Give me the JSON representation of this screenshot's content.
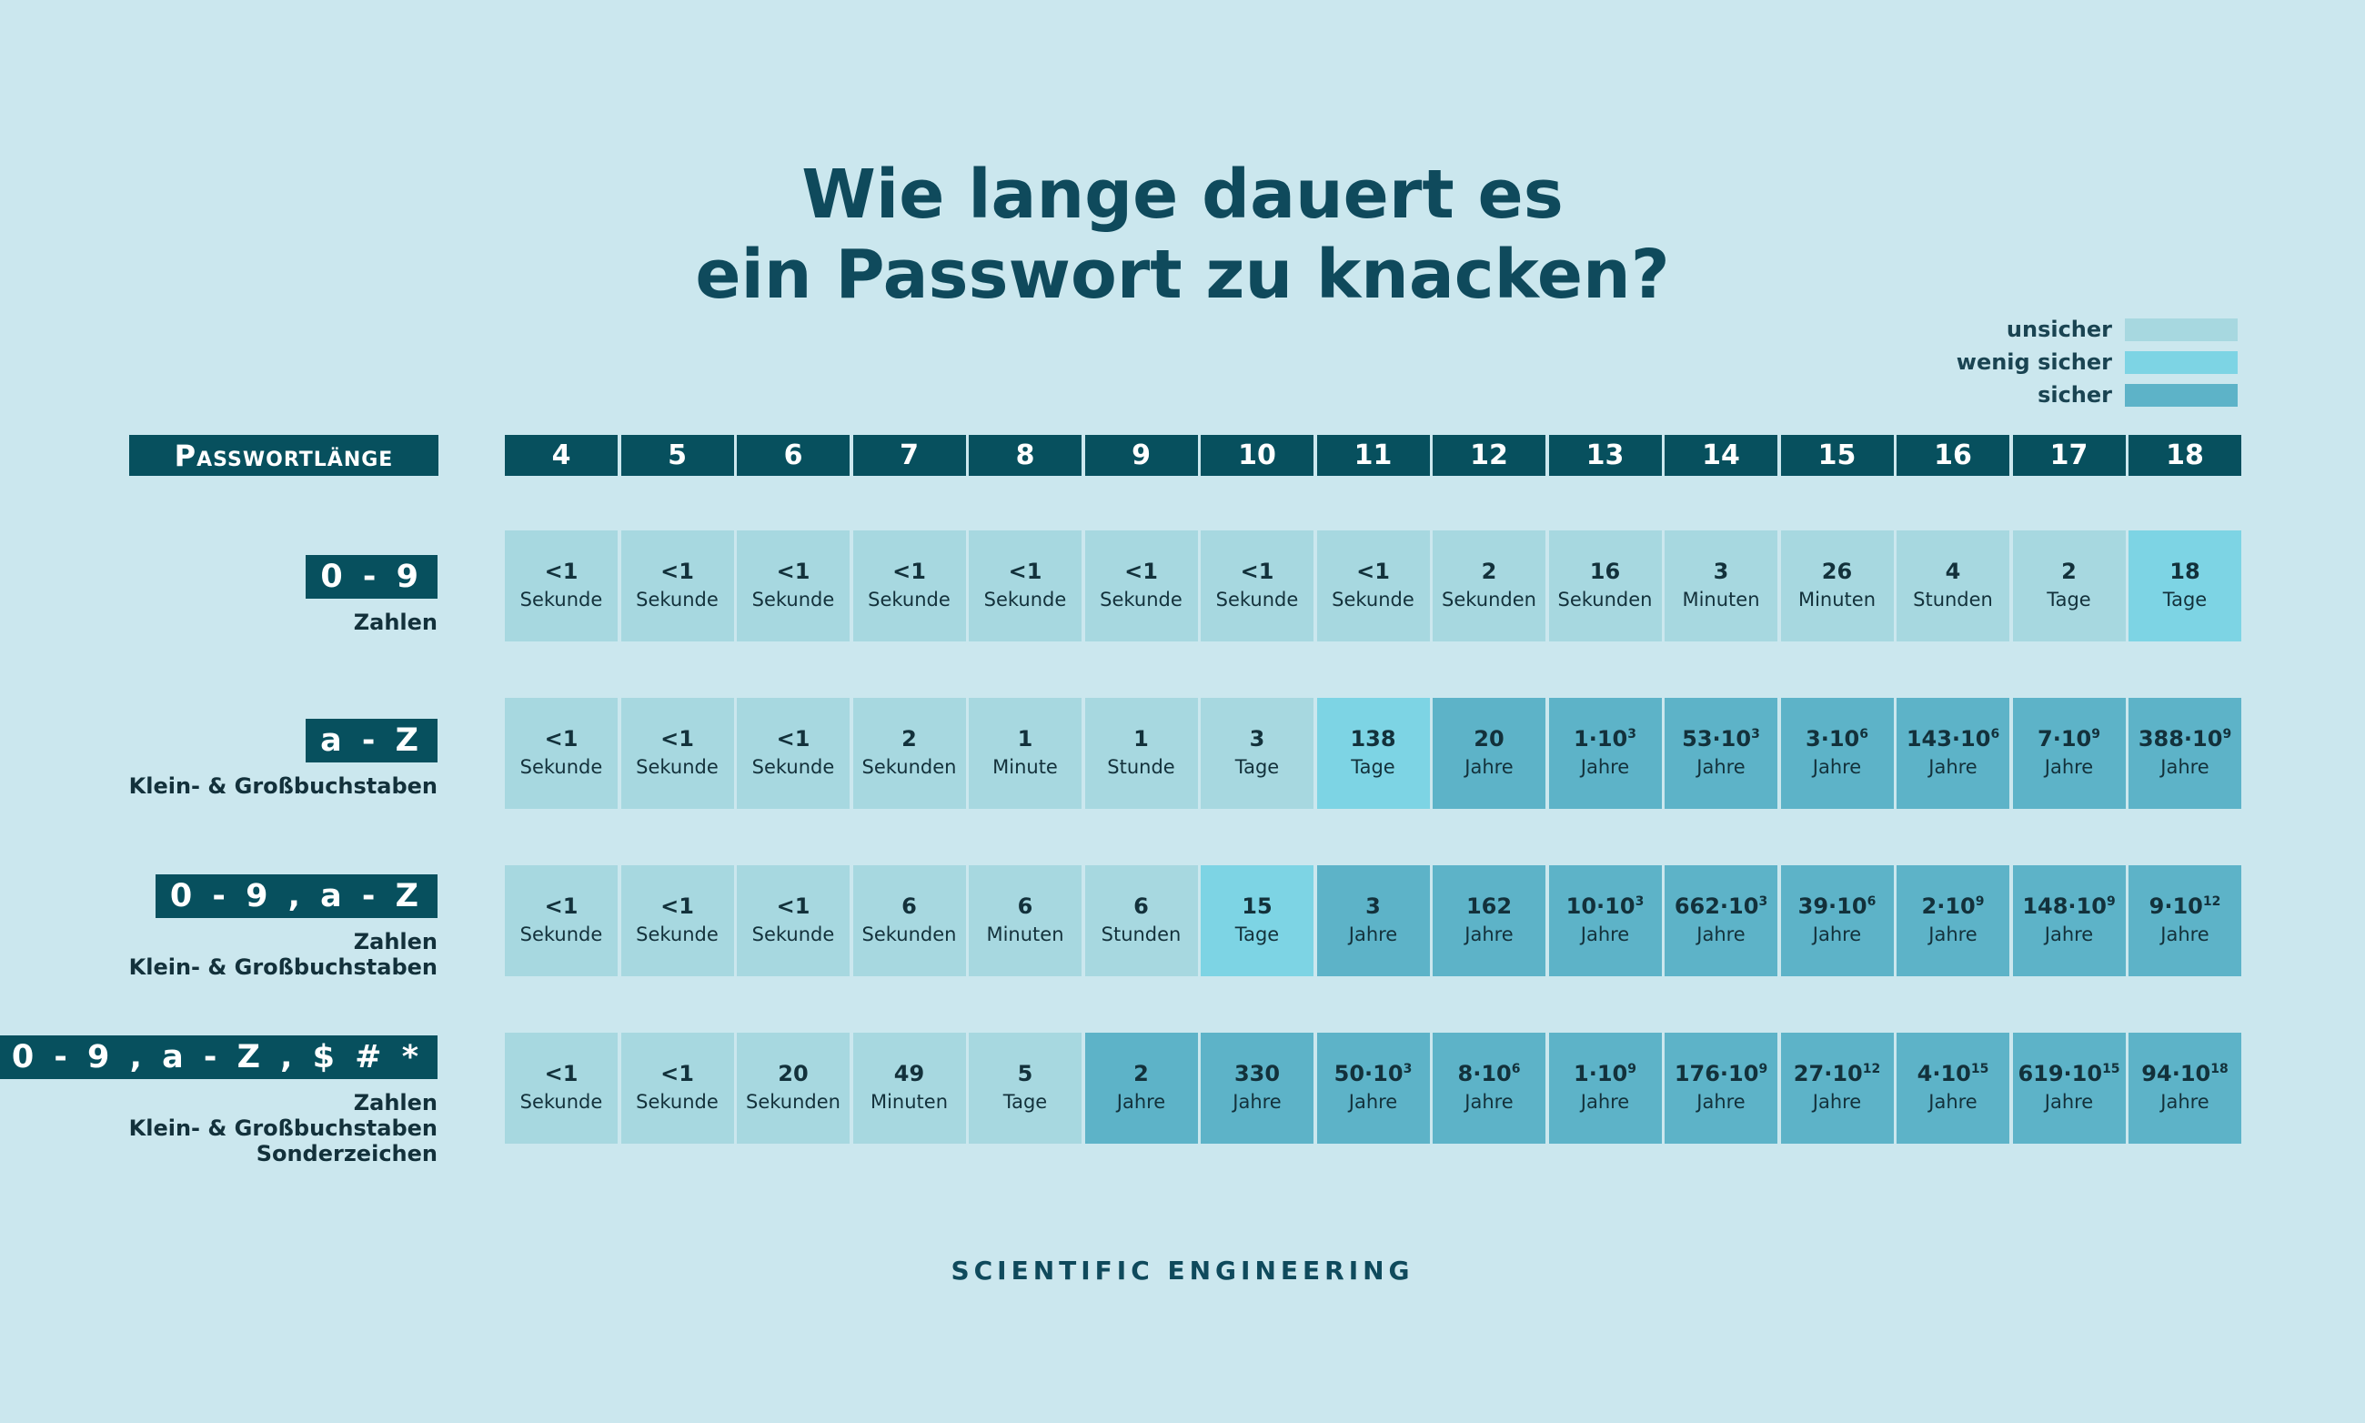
{
  "title": [
    "Wie lange dauert es",
    "ein Passwort zu knacken?"
  ],
  "legend": [
    {
      "label": "unsicher",
      "color": "#a7d8e0"
    },
    {
      "label": "wenig sicher",
      "color": "#7dd4e4"
    },
    {
      "label": "sicher",
      "color": "#5db3c8"
    }
  ],
  "header_label": "Passwortlänge",
  "footer": "SCIENTIFIC ENGINEERING",
  "chart_data": {
    "type": "table",
    "title": "Wie lange dauert es ein Passwort zu knacken?",
    "columns": [
      "4",
      "5",
      "6",
      "7",
      "8",
      "9",
      "10",
      "11",
      "12",
      "13",
      "14",
      "15",
      "16",
      "17",
      "18"
    ],
    "rows": [
      {
        "badge": "0 - 9",
        "desc": [
          "Zahlen"
        ],
        "cells": [
          {
            "v": "<1",
            "u": "Sekunde",
            "c": 0
          },
          {
            "v": "<1",
            "u": "Sekunde",
            "c": 0
          },
          {
            "v": "<1",
            "u": "Sekunde",
            "c": 0
          },
          {
            "v": "<1",
            "u": "Sekunde",
            "c": 0
          },
          {
            "v": "<1",
            "u": "Sekunde",
            "c": 0
          },
          {
            "v": "<1",
            "u": "Sekunde",
            "c": 0
          },
          {
            "v": "<1",
            "u": "Sekunde",
            "c": 0
          },
          {
            "v": "<1",
            "u": "Sekunde",
            "c": 0
          },
          {
            "v": "2",
            "u": "Sekunden",
            "c": 0
          },
          {
            "v": "16",
            "u": "Sekunden",
            "c": 0
          },
          {
            "v": "3",
            "u": "Minuten",
            "c": 0
          },
          {
            "v": "26",
            "u": "Minuten",
            "c": 0
          },
          {
            "v": "4",
            "u": "Stunden",
            "c": 0
          },
          {
            "v": "2",
            "u": "Tage",
            "c": 0
          },
          {
            "v": "18",
            "u": "Tage",
            "c": 1
          }
        ]
      },
      {
        "badge": "a - Z",
        "desc": [
          "Klein- & Großbuchstaben"
        ],
        "cells": [
          {
            "v": "<1",
            "u": "Sekunde",
            "c": 0
          },
          {
            "v": "<1",
            "u": "Sekunde",
            "c": 0
          },
          {
            "v": "<1",
            "u": "Sekunde",
            "c": 0
          },
          {
            "v": "2",
            "u": "Sekunden",
            "c": 0
          },
          {
            "v": "1",
            "u": "Minute",
            "c": 0
          },
          {
            "v": "1",
            "u": "Stunde",
            "c": 0
          },
          {
            "v": "3",
            "u": "Tage",
            "c": 0
          },
          {
            "v": "138",
            "u": "Tage",
            "c": 1
          },
          {
            "v": "20",
            "u": "Jahre",
            "c": 2
          },
          {
            "v": "1·10",
            "e": "3",
            "u": "Jahre",
            "c": 2
          },
          {
            "v": "53·10",
            "e": "3",
            "u": "Jahre",
            "c": 2
          },
          {
            "v": "3·10",
            "e": "6",
            "u": "Jahre",
            "c": 2
          },
          {
            "v": "143·10",
            "e": "6",
            "u": "Jahre",
            "c": 2
          },
          {
            "v": "7·10",
            "e": "9",
            "u": "Jahre",
            "c": 2
          },
          {
            "v": "388·10",
            "e": "9",
            "u": "Jahre",
            "c": 2
          }
        ]
      },
      {
        "badge": "0 - 9 , a - Z",
        "desc": [
          "Zahlen",
          "Klein- & Großbuchstaben"
        ],
        "cells": [
          {
            "v": "<1",
            "u": "Sekunde",
            "c": 0
          },
          {
            "v": "<1",
            "u": "Sekunde",
            "c": 0
          },
          {
            "v": "<1",
            "u": "Sekunde",
            "c": 0
          },
          {
            "v": "6",
            "u": "Sekunden",
            "c": 0
          },
          {
            "v": "6",
            "u": "Minuten",
            "c": 0
          },
          {
            "v": "6",
            "u": "Stunden",
            "c": 0
          },
          {
            "v": "15",
            "u": "Tage",
            "c": 1
          },
          {
            "v": "3",
            "u": "Jahre",
            "c": 2
          },
          {
            "v": "162",
            "u": "Jahre",
            "c": 2
          },
          {
            "v": "10·10",
            "e": "3",
            "u": "Jahre",
            "c": 2
          },
          {
            "v": "662·10",
            "e": "3",
            "u": "Jahre",
            "c": 2
          },
          {
            "v": "39·10",
            "e": "6",
            "u": "Jahre",
            "c": 2
          },
          {
            "v": "2·10",
            "e": "9",
            "u": "Jahre",
            "c": 2
          },
          {
            "v": "148·10",
            "e": "9",
            "u": "Jahre",
            "c": 2
          },
          {
            "v": "9·10",
            "e": "12",
            "u": "Jahre",
            "c": 2
          }
        ]
      },
      {
        "badge": "0 - 9 , a - Z , $ # *",
        "desc": [
          "Zahlen",
          "Klein- & Großbuchstaben",
          "Sonderzeichen"
        ],
        "cells": [
          {
            "v": "<1",
            "u": "Sekunde",
            "c": 0
          },
          {
            "v": "<1",
            "u": "Sekunde",
            "c": 0
          },
          {
            "v": "20",
            "u": "Sekunden",
            "c": 0
          },
          {
            "v": "49",
            "u": "Minuten",
            "c": 0
          },
          {
            "v": "5",
            "u": "Tage",
            "c": 0
          },
          {
            "v": "2",
            "u": "Jahre",
            "c": 2
          },
          {
            "v": "330",
            "u": "Jahre",
            "c": 2
          },
          {
            "v": "50·10",
            "e": "3",
            "u": "Jahre",
            "c": 2
          },
          {
            "v": "8·10",
            "e": "6",
            "u": "Jahre",
            "c": 2
          },
          {
            "v": "1·10",
            "e": "9",
            "u": "Jahre",
            "c": 2
          },
          {
            "v": "176·10",
            "e": "9",
            "u": "Jahre",
            "c": 2
          },
          {
            "v": "27·10",
            "e": "12",
            "u": "Jahre",
            "c": 2
          },
          {
            "v": "4·10",
            "e": "15",
            "u": "Jahre",
            "c": 2
          },
          {
            "v": "619·10",
            "e": "15",
            "u": "Jahre",
            "c": 2
          },
          {
            "v": "94·10",
            "e": "18",
            "u": "Jahre",
            "c": 2
          }
        ]
      }
    ]
  }
}
